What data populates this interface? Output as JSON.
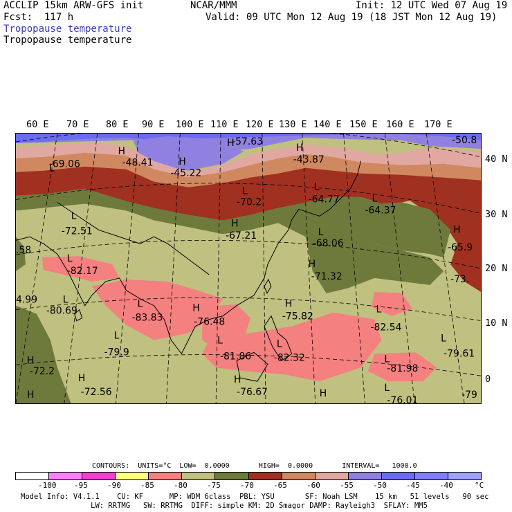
{
  "header": {
    "line1_left": "ACCLIP 15km ARW-GFS init",
    "line1_mid": "NCAR/MMM",
    "line1_right": "Init: 12 UTC Wed 07 Aug 19",
    "line2_left": "Fcst:  117 h",
    "line2_right": "Valid: 09 UTC Mon 12 Aug 19 (18 JST Mon 12 Aug 19)",
    "field_blue": "Tropopause temperature",
    "field_black": "Tropopause temperature"
  },
  "map": {
    "lon_labels": [
      "60 E",
      "70 E",
      "80 E",
      "90 E",
      "100 E",
      "110 E",
      "120 E",
      "130 E",
      "140 E",
      "150 E",
      "160 E",
      "170 E"
    ],
    "lat_labels": [
      "40 N",
      "30 N",
      "20 N",
      "10 N",
      "0"
    ],
    "colors": {
      "c_m85": "#f48080",
      "c_m80": "#c0c080",
      "c_m75": "#6e7a3c",
      "c_m70": "#a03020",
      "c_m65": "#d08860",
      "c_m55": "#e0a8a0",
      "c_m50": "#9080e0",
      "c_m45": "#6c6cf0",
      "coast": "#000000"
    },
    "extrema": [
      {
        "type": "L",
        "value": "-69.06"
      },
      {
        "type": "H",
        "value": "-48.41"
      },
      {
        "type": "H",
        "value": "-45.22"
      },
      {
        "type": "H",
        "value": "-57.63"
      },
      {
        "type": "H",
        "value": "-43.87"
      },
      {
        "type": "",
        "value": "-50.8"
      },
      {
        "type": "L",
        "value": "-70.2"
      },
      {
        "type": "L",
        "value": "-64.77"
      },
      {
        "type": "L",
        "value": "-64.37"
      },
      {
        "type": "L",
        "value": "-72.51"
      },
      {
        "type": "H",
        "value": "-67.21"
      },
      {
        "type": "L",
        "value": "-68.06"
      },
      {
        "type": "H",
        "value": "-65.9"
      },
      {
        "type": "",
        "value": ".58"
      },
      {
        "type": "L",
        "value": "-82.17"
      },
      {
        "type": "H",
        "value": "-71.32"
      },
      {
        "type": "",
        "value": "-73."
      },
      {
        "type": "",
        "value": "4.99"
      },
      {
        "type": "L",
        "value": "-80.69"
      },
      {
        "type": "L",
        "value": "-83.83"
      },
      {
        "type": "H",
        "value": "-76.48"
      },
      {
        "type": "H",
        "value": "-75.82"
      },
      {
        "type": "L",
        "value": "-82.54"
      },
      {
        "type": "L",
        "value": "-79.9"
      },
      {
        "type": "L",
        "value": "-81.86"
      },
      {
        "type": "L",
        "value": "-82.32"
      },
      {
        "type": "L",
        "value": "-79.61"
      },
      {
        "type": "H",
        "value": "-72.2"
      },
      {
        "type": "L",
        "value": "-81.98"
      },
      {
        "type": "H",
        "value": "-72.56"
      },
      {
        "type": "H",
        "value": "-76.67"
      },
      {
        "type": "H",
        "value": ""
      },
      {
        "type": "L",
        "value": "-76.01"
      },
      {
        "type": "",
        "value": "-79"
      }
    ]
  },
  "contours": {
    "text": "CONTOURS:  UNITS=°C  LOW=  0.0000       HIGH=  0.0000       INTERVAL=   1000.0"
  },
  "legend": {
    "colors": [
      "#ffffff",
      "#ff80ff",
      "#f040d0",
      "#ffff80",
      "#f48080",
      "#c0c080",
      "#6e7a3c",
      "#a03020",
      "#d08860",
      "#e0a8a0",
      "#9080e0",
      "#6c6cf0",
      "#8080f8",
      "#a0a0ff"
    ],
    "labels": [
      "-100",
      "-95",
      "-90",
      "-85",
      "-80",
      "-75",
      "-70",
      "-65",
      "-60",
      "-55",
      "-50",
      "-45",
      "-40"
    ],
    "unit": "°C"
  },
  "footer": {
    "line1": "Model Info: V4.1.1    CU: KF      MP: WDM 6class  PBL: YSU       SF: Noah LSM    15 km   51 levels   90 sec",
    "line2": "                LW: RRTMG   SW: RRTMG  DIFF: simple KM: 2D Smagor DAMP: Rayleigh3  SFLAY: MM5"
  }
}
